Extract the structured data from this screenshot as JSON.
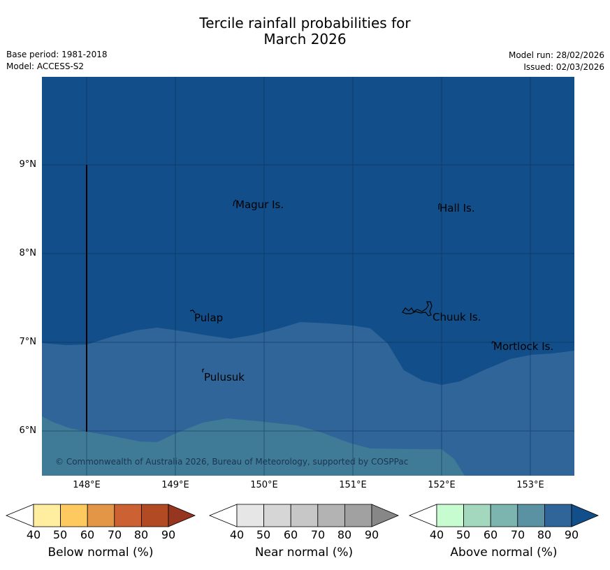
{
  "title_line1": "Tercile rainfall probabilities for",
  "title_line2": "March 2026",
  "meta_left": {
    "base_period": "Base period: 1981-2018",
    "model": "Model: ACCESS-S2"
  },
  "meta_right": {
    "model_run": "Model run: 28/02/2026",
    "issued": "Issued: 02/03/2026"
  },
  "map": {
    "lat_labels": [
      "9°N",
      "8°N",
      "7°N",
      "6°N"
    ],
    "lon_labels": [
      "148°E",
      "149°E",
      "150°E",
      "151°E",
      "152°E",
      "153°E"
    ],
    "places": [
      "Magur Is.",
      "Hall Is.",
      "Pulap",
      "Chuuk Is.",
      "Mortlock Is.",
      "Pulusuk"
    ],
    "copyright": "© Commonwealth of Australia 2026, Bureau of Meteorology, supported by COSPPac",
    "colors": {
      "above_90": "#124e89",
      "above_80": "#2f6599",
      "above_70": "#3f7b97"
    }
  },
  "legends": [
    {
      "label": "Below normal (%)",
      "ticks": [
        "40",
        "50",
        "60",
        "70",
        "80",
        "90"
      ],
      "colors": [
        "#ffffff",
        "#ffeda0",
        "#fec95f",
        "#e39646",
        "#cc6133",
        "#b24a24",
        "#963520"
      ]
    },
    {
      "label": "Near normal (%)",
      "ticks": [
        "40",
        "50",
        "60",
        "70",
        "80",
        "90"
      ],
      "colors": [
        "#ffffff",
        "#e6e6e6",
        "#d6d6d6",
        "#c7c7c7",
        "#b3b3b3",
        "#a1a1a1",
        "#878787"
      ]
    },
    {
      "label": "Above normal (%)",
      "ticks": [
        "40",
        "50",
        "60",
        "70",
        "80",
        "90"
      ],
      "colors": [
        "#ffffff",
        "#c6fcd0",
        "#a3d8bf",
        "#7cb4b0",
        "#5a92a4",
        "#2f6599",
        "#124e89"
      ]
    }
  ]
}
